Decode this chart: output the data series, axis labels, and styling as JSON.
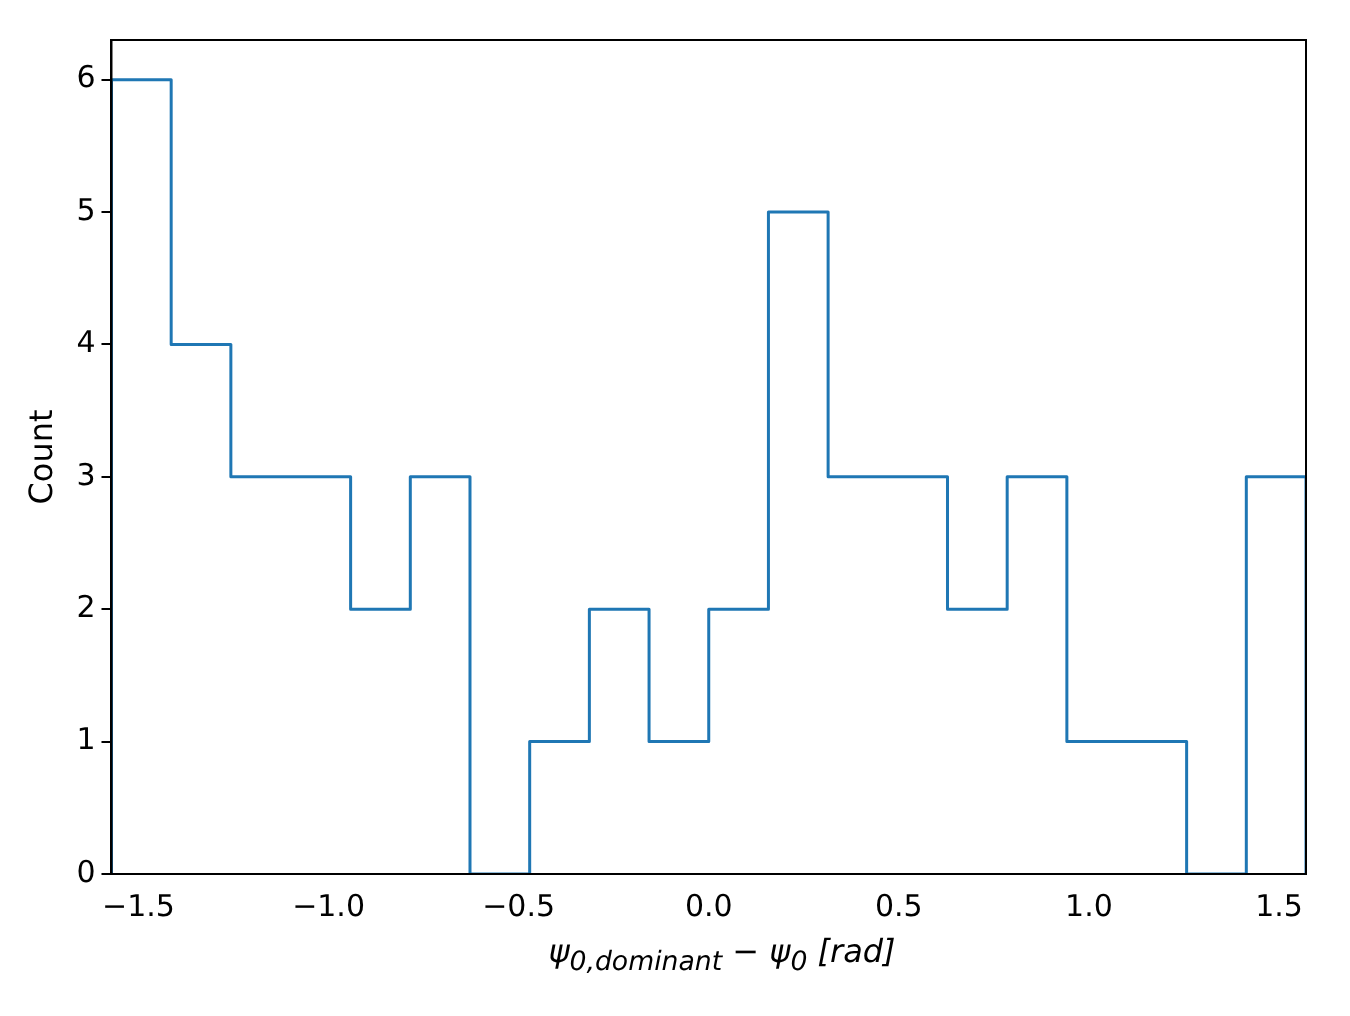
{
  "chart_data": {
    "type": "histogram",
    "xlabel": "ψ$_{0,dominant}$ − ψ$_{0}$ [rad]",
    "ylabel": "Count",
    "bins": [
      -1.571,
      -1.414,
      -1.257,
      -1.1,
      -0.942,
      -0.785,
      -0.628,
      -0.471,
      -0.314,
      -0.157,
      0,
      0.157,
      0.314,
      0.471,
      0.628,
      0.785,
      0.942,
      1.1,
      1.257,
      1.414,
      1.571
    ],
    "values": [
      6,
      4,
      3,
      3,
      2,
      3,
      0,
      1,
      2,
      1,
      2,
      5,
      3,
      3,
      2,
      3,
      1,
      1,
      0,
      3
    ],
    "color": "#1f77b4",
    "xlim": [
      -1.571,
      1.571
    ],
    "ylim": [
      0,
      6.3
    ],
    "xticks": [
      {
        "value": -1.5,
        "label": "−1.5"
      },
      {
        "value": -1.0,
        "label": "−1.0"
      },
      {
        "value": -0.5,
        "label": "−0.5"
      },
      {
        "value": 0,
        "label": "0.0"
      },
      {
        "value": 0.5,
        "label": "0.5"
      },
      {
        "value": 1.0,
        "label": "1.0"
      },
      {
        "value": 1.5,
        "label": "1.5"
      }
    ],
    "yticks": [
      0,
      1,
      2,
      3,
      4,
      5,
      6
    ],
    "grid": false,
    "legend": false
  }
}
